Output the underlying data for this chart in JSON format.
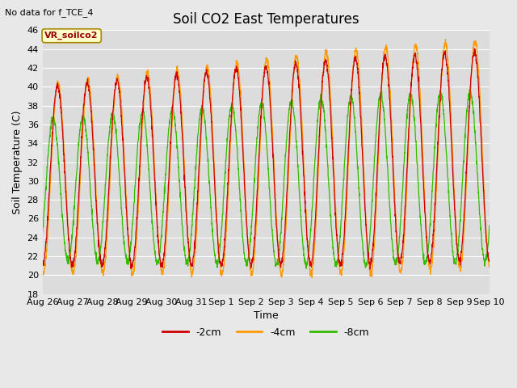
{
  "title": "Soil CO2 East Temperatures",
  "no_data_text": "No data for f_TCE_4",
  "box_label": "VR_soilco2",
  "ylabel": "Soil Temperature (C)",
  "xlabel": "Time",
  "ylim": [
    18,
    46
  ],
  "yticks": [
    18,
    20,
    22,
    24,
    26,
    28,
    30,
    32,
    34,
    36,
    38,
    40,
    42,
    44,
    46
  ],
  "xtick_labels": [
    "Aug 26",
    "Aug 27",
    "Aug 28",
    "Aug 29",
    "Aug 30",
    "Aug 31",
    "Sep 1",
    "Sep 2",
    "Sep 3",
    "Sep 4",
    "Sep 5",
    "Sep 6",
    "Sep 7",
    "Sep 8",
    "Sep 9",
    "Sep 10"
  ],
  "line_colors": {
    "m2cm": "#cc0000",
    "m4cm": "#ff9900",
    "m8cm": "#33bb00"
  },
  "legend_labels": [
    "-2cm",
    "-4cm",
    "-8cm"
  ],
  "background_color": "#e8e8e8",
  "plot_bg_color": "#dcdcdc",
  "n_days": 15,
  "samples_per_day": 144,
  "title_fontsize": 12,
  "label_fontsize": 9,
  "tick_fontsize": 8
}
